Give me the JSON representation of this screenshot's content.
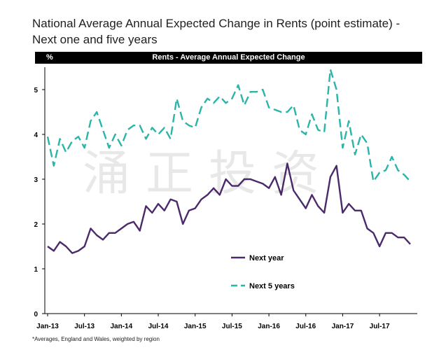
{
  "title_line1": "National Average Annual Expected Change in Rents (point estimate) -",
  "title_line2": "Next one and five years",
  "header": {
    "unit": "%",
    "title": "Rents  -  Average Annual Expected Change"
  },
  "footnote": "*Averages,  England and Wales, weighted by region",
  "watermark": "涌正投资",
  "colors": {
    "next_year": "#4b2a6b",
    "next_5_years": "#2ab5a8",
    "header_bg": "#000000"
  },
  "chart_data": {
    "type": "line",
    "title": "Rents  -  Average Annual Expected Change",
    "ylabel": "%",
    "ylim": [
      0,
      5.5
    ],
    "yticks": [
      0,
      1,
      2,
      3,
      4,
      5
    ],
    "x_start": "Jan-13",
    "x_end": "Dec-17",
    "xtick_labels": [
      "Jan-13",
      "Jul-13",
      "Jan-14",
      "Jul-14",
      "Jan-15",
      "Jul-15",
      "Jan-16",
      "Jul-16",
      "Jan-17",
      "Jul-17"
    ],
    "legend_position": "lower-center",
    "grid": false,
    "series": [
      {
        "name": "Next year",
        "style": "solid",
        "values": [
          1.5,
          1.4,
          1.6,
          1.5,
          1.35,
          1.4,
          1.5,
          1.9,
          1.75,
          1.65,
          1.8,
          1.8,
          1.9,
          2.0,
          2.05,
          1.85,
          2.4,
          2.25,
          2.45,
          2.3,
          2.55,
          2.5,
          2.0,
          2.3,
          2.35,
          2.55,
          2.65,
          2.8,
          2.65,
          3.0,
          2.85,
          2.85,
          3.0,
          3.0,
          2.95,
          2.9,
          2.8,
          3.05,
          2.65,
          3.35,
          2.75,
          2.55,
          2.35,
          2.65,
          2.4,
          2.25,
          3.05,
          3.3,
          2.25,
          2.45,
          2.3,
          2.3,
          1.9,
          1.8,
          1.5,
          1.8,
          1.8,
          1.7,
          1.7,
          1.55
        ]
      },
      {
        "name": "Next 5 years",
        "style": "dashed",
        "values": [
          3.95,
          3.3,
          3.9,
          3.6,
          3.85,
          3.95,
          3.7,
          4.3,
          4.5,
          4.1,
          3.7,
          4.0,
          3.75,
          4.1,
          4.2,
          4.2,
          3.9,
          4.15,
          4.0,
          4.15,
          3.9,
          4.8,
          4.3,
          4.2,
          4.15,
          4.6,
          4.8,
          4.7,
          4.85,
          4.7,
          4.8,
          5.1,
          4.65,
          4.95,
          4.95,
          5.0,
          4.6,
          4.55,
          4.5,
          4.5,
          4.65,
          4.1,
          4.0,
          4.45,
          4.1,
          4.05,
          5.45,
          5.0,
          3.7,
          4.3,
          3.55,
          4.0,
          3.8,
          2.95,
          3.15,
          3.2,
          3.5,
          3.2,
          3.1,
          2.95
        ]
      }
    ]
  }
}
